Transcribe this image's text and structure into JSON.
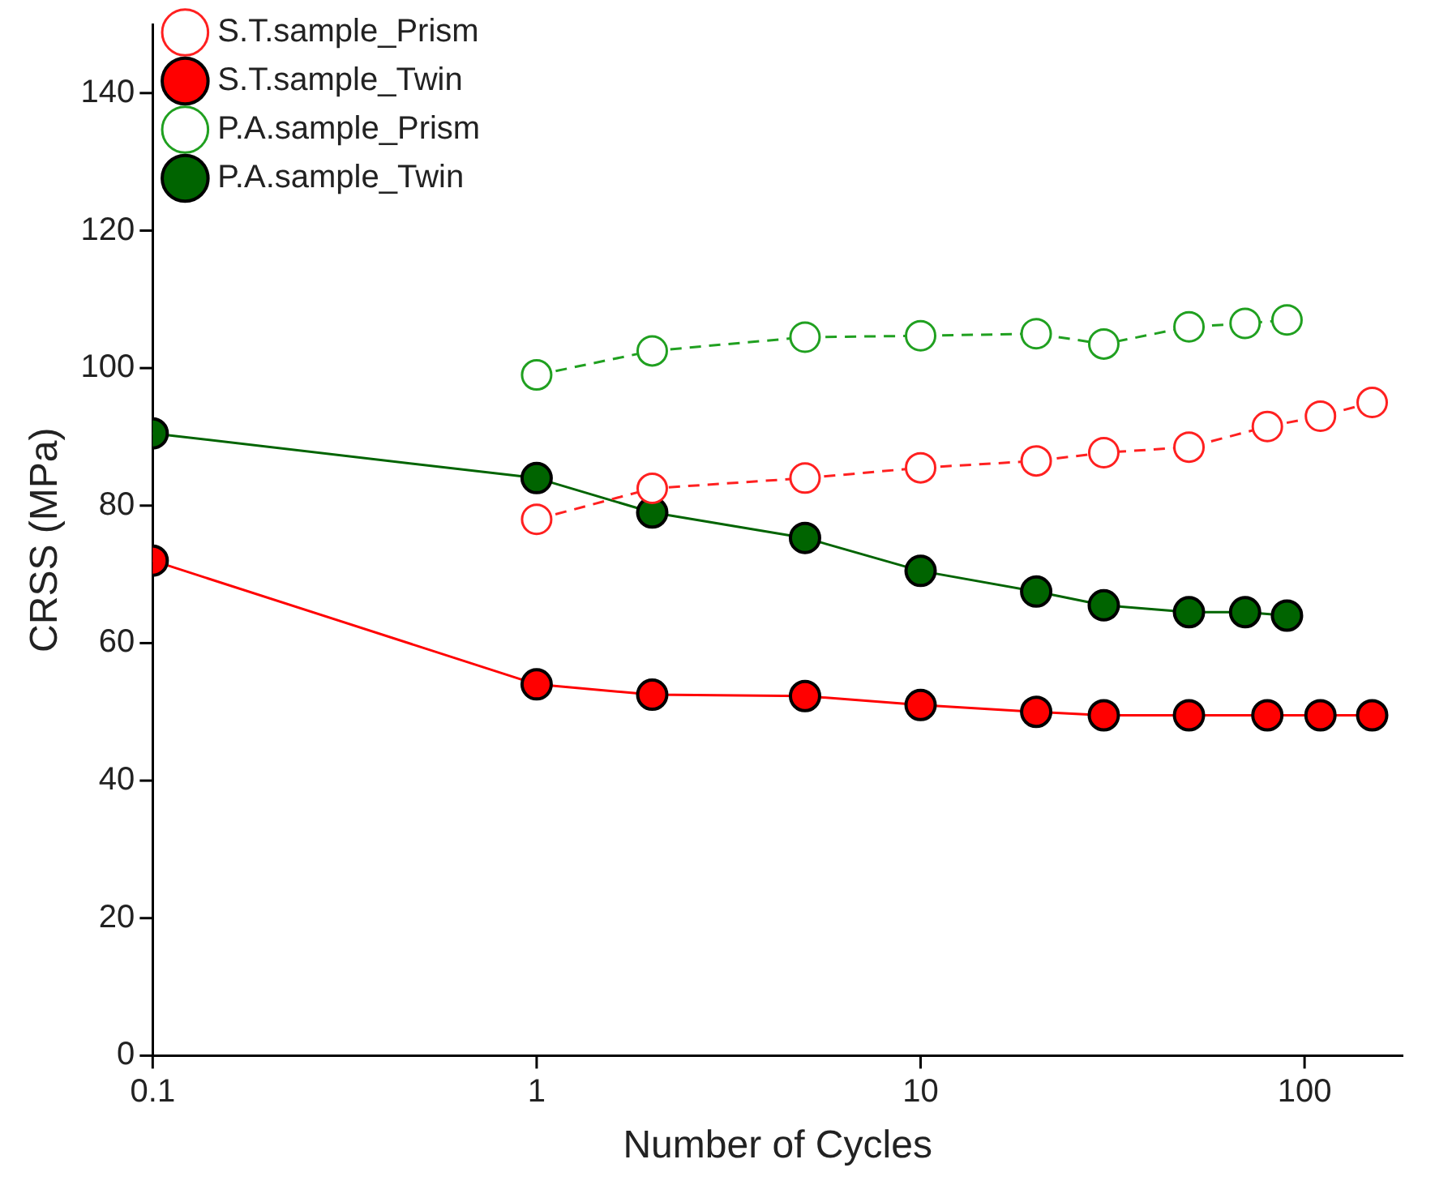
{
  "chart_data": {
    "type": "line",
    "xlabel": "Number of Cycles",
    "ylabel": "CRSS (MPa)",
    "log": "x",
    "xlim": [
      0.1,
      180
    ],
    "xticks": [
      0.1,
      1,
      10,
      100
    ],
    "ylim": [
      0,
      150
    ],
    "yticks": [
      0,
      20,
      40,
      60,
      80,
      100,
      120,
      140
    ],
    "grid": false,
    "legend": "top left",
    "marker": "circle",
    "series": [
      {
        "name": "S.T.sample_Prism",
        "color": "#ff2020",
        "line_style": "dashed",
        "x": [
          1,
          2,
          5,
          10,
          20,
          30,
          50,
          80,
          110,
          150
        ],
        "values": [
          78,
          82.5,
          84,
          85.5,
          86.5,
          87.7,
          88.5,
          91.5,
          93,
          95
        ]
      },
      {
        "name": "S.T.sample_Twin",
        "color": "#ff0000",
        "line_style": "solid",
        "x": [
          0.1,
          1,
          2,
          5,
          10,
          20,
          30,
          50,
          80,
          110,
          150
        ],
        "values": [
          72,
          54,
          52.5,
          52.3,
          51,
          50,
          49.5,
          49.5,
          49.5,
          49.5,
          49.5
        ]
      },
      {
        "name": "P.A.sample_Prism",
        "color": "#20a020",
        "line_style": "dashed",
        "x": [
          1,
          2,
          5,
          10,
          20,
          30,
          50,
          70,
          90
        ],
        "values": [
          99,
          102.5,
          104.5,
          104.7,
          105,
          103.5,
          106,
          106.5,
          107
        ]
      },
      {
        "name": "P.A.sample_Twin",
        "color": "#006400",
        "line_style": "solid",
        "x": [
          0.1,
          1,
          2,
          5,
          10,
          20,
          30,
          50,
          70,
          90
        ],
        "values": [
          90.5,
          84,
          79,
          75.3,
          70.5,
          67.5,
          65.5,
          64.5,
          64.5,
          64
        ]
      }
    ]
  }
}
